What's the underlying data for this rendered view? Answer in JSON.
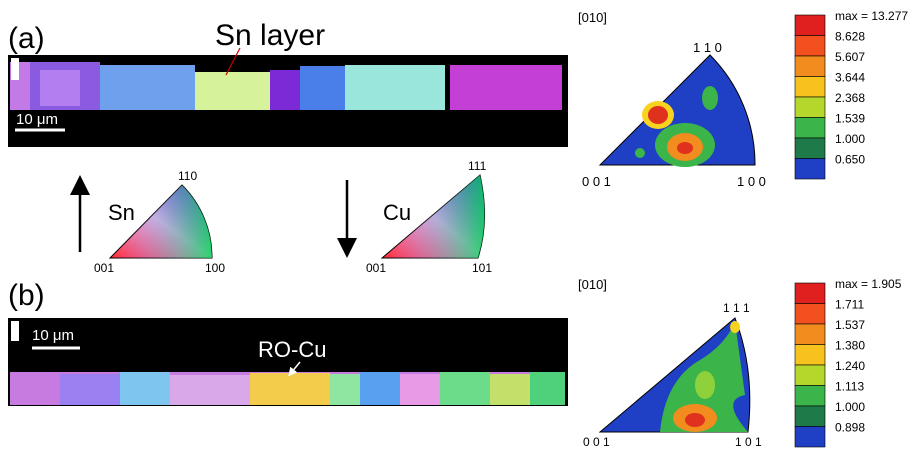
{
  "panel_a": {
    "label": "(a)",
    "annotation": "Sn layer",
    "scale_bar": "10 μm",
    "pole_figure": {
      "direction": "[010]",
      "corners": [
        "1 1 0",
        "0 0 1",
        "1 0 0"
      ],
      "legend": [
        "max = 13.277",
        "8.628",
        "5.607",
        "3.644",
        "2.368",
        "1.539",
        "1.000",
        "0.650"
      ]
    }
  },
  "keys": [
    {
      "label": "Sn",
      "corners": [
        "110",
        "001",
        "100"
      ]
    },
    {
      "label": "Cu",
      "corners": [
        "111",
        "001",
        "101"
      ]
    }
  ],
  "panel_b": {
    "label": "(b)",
    "annotation": "RO-Cu",
    "scale_bar": "10 μm",
    "pole_figure": {
      "direction": "[010]",
      "corners": [
        "1 1 1",
        "0 0 1",
        "1 0 1"
      ],
      "legend": [
        "max = 1.905",
        "1.711",
        "1.537",
        "1.380",
        "1.240",
        "1.113",
        "1.000",
        "0.898"
      ]
    }
  }
}
